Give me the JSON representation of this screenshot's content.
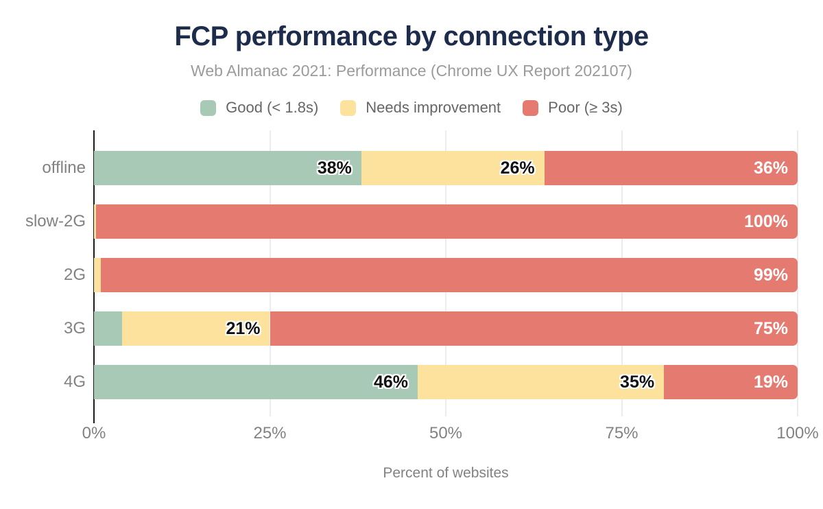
{
  "title": "FCP performance by connection type",
  "subtitle": "Web Almanac 2021: Performance (Chrome UX Report 202107)",
  "colors": {
    "good": "#a8c9b6",
    "needs_improvement": "#fce29c",
    "poor": "#e57b70",
    "title_text": "#1e2c4c",
    "axis_text": "#828282",
    "gridline": "#ececec"
  },
  "chart_data": {
    "type": "bar",
    "orientation": "horizontal-stacked",
    "title": "FCP performance by connection type",
    "subtitle": "Web Almanac 2021: Performance (Chrome UX Report 202107)",
    "categories": [
      "offline",
      "slow-2G",
      "2G",
      "3G",
      "4G"
    ],
    "series": [
      {
        "name": "Good (< 1.8s)",
        "key": "good",
        "color": "#a8c9b6",
        "values": [
          38,
          0,
          0,
          4,
          46
        ],
        "labels": [
          "38%",
          "0%",
          "0%",
          "4%",
          "46%"
        ],
        "widths": [
          38,
          0,
          0,
          4,
          46
        ]
      },
      {
        "name": "Needs improvement",
        "key": "needs_improvement",
        "color": "#fce29c",
        "values": [
          26,
          0,
          1,
          21,
          35
        ],
        "labels": [
          "26%",
          "0%",
          "1%",
          "21%",
          "35%"
        ],
        "widths": [
          26,
          0.3,
          1,
          21,
          35
        ]
      },
      {
        "name": "Poor (≥ 3s)",
        "key": "poor",
        "color": "#e57b70",
        "values": [
          36,
          100,
          99,
          75,
          19
        ],
        "labels": [
          "36%",
          "100%",
          "99%",
          "75%",
          "19%"
        ],
        "widths": [
          36,
          99.7,
          99,
          75,
          19
        ]
      }
    ],
    "xlabel": "Percent of websites",
    "x_ticks": [
      "0%",
      "25%",
      "50%",
      "75%",
      "100%"
    ],
    "xlim": [
      0,
      100
    ],
    "grid": "vertical-light",
    "legend_position": "top"
  }
}
